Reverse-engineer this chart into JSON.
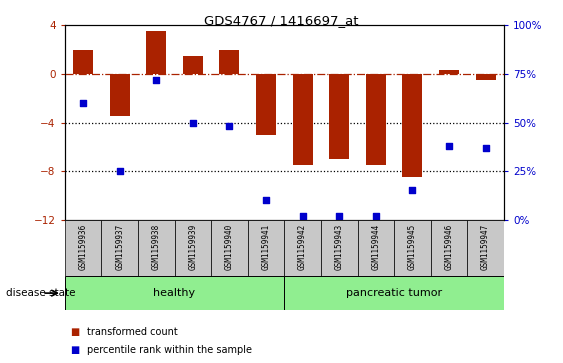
{
  "title": "GDS4767 / 1416697_at",
  "samples": [
    "GSM1159936",
    "GSM1159937",
    "GSM1159938",
    "GSM1159939",
    "GSM1159940",
    "GSM1159941",
    "GSM1159942",
    "GSM1159943",
    "GSM1159944",
    "GSM1159945",
    "GSM1159946",
    "GSM1159947"
  ],
  "transformed_count": [
    2.0,
    -3.5,
    3.5,
    1.5,
    2.0,
    -5.0,
    -7.5,
    -7.0,
    -7.5,
    -8.5,
    0.3,
    -0.5
  ],
  "percentile_rank": [
    60,
    25,
    72,
    50,
    48,
    10,
    2,
    2,
    2,
    15,
    38,
    37
  ],
  "ylim_left": [
    -12,
    4
  ],
  "ylim_right": [
    0,
    100
  ],
  "yticks_left": [
    4,
    0,
    -4,
    -8,
    -12
  ],
  "yticks_right": [
    100,
    75,
    50,
    25,
    0
  ],
  "bar_color": "#AA2200",
  "dot_color": "#0000CC",
  "dotted_lines": [
    -4,
    -8
  ],
  "background_color": "#ffffff",
  "plot_bg_color": "#ffffff",
  "tick_label_area_color": "#C8C8C8",
  "group_color": "#90EE90",
  "disease_state_label": "disease state",
  "legend_items": [
    "transformed count",
    "percentile rank within the sample"
  ],
  "healthy_range": [
    0,
    5
  ],
  "tumor_range": [
    6,
    11
  ]
}
